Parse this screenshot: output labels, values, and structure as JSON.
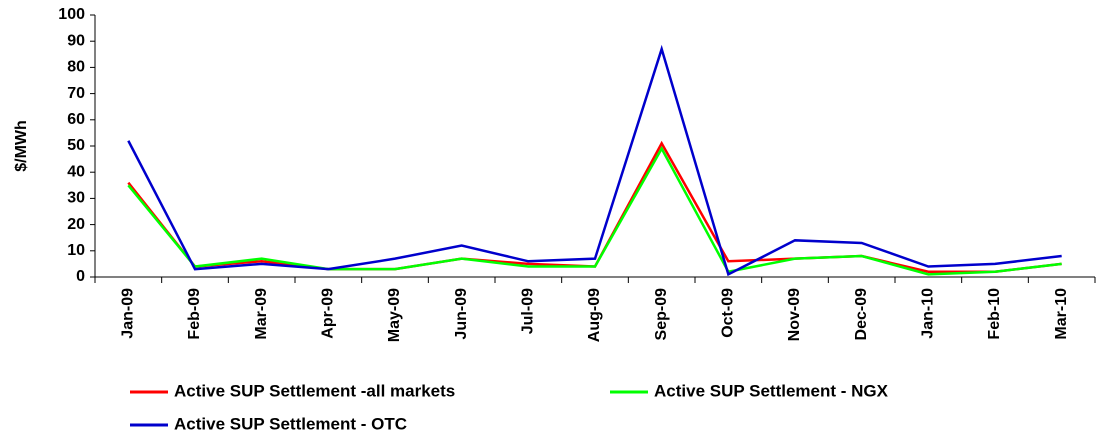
{
  "chart_data": {
    "type": "line",
    "y_label": "$/MWh",
    "categories": [
      "Jan-09",
      "Feb-09",
      "Mar-09",
      "Apr-09",
      "May-09",
      "Jun-09",
      "Jul-09",
      "Aug-09",
      "Sep-09",
      "Oct-09",
      "Nov-09",
      "Dec-09",
      "Jan-10",
      "Feb-10",
      "Mar-10"
    ],
    "series": [
      {
        "name": "Active SUP Settlement -all markets",
        "color": "#ff0000",
        "values": [
          36,
          4,
          6,
          3,
          3,
          7,
          5,
          4,
          51,
          6,
          7,
          8,
          2,
          2,
          5
        ]
      },
      {
        "name": "Active SUP Settlement - NGX",
        "color": "#00ff00",
        "values": [
          35,
          4,
          7,
          3,
          3,
          7,
          4,
          4,
          49,
          2,
          7,
          8,
          1,
          2,
          5
        ]
      },
      {
        "name": "Active SUP Settlement - OTC",
        "color": "#0000cc",
        "values": [
          52,
          3,
          5,
          3,
          7,
          12,
          6,
          7,
          87,
          1,
          14,
          13,
          4,
          5,
          8
        ]
      }
    ],
    "ylim": [
      0,
      100
    ],
    "yticks": [
      0,
      10,
      20,
      30,
      40,
      50,
      60,
      70,
      80,
      90,
      100
    ],
    "grid": false,
    "legend": "bottom"
  }
}
